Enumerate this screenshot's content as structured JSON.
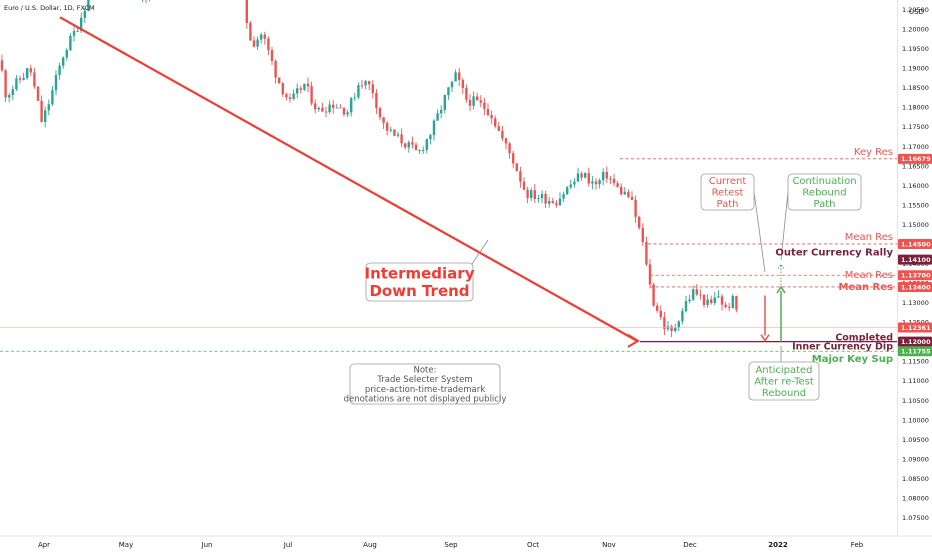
{
  "chart_data": {
    "type": "candlestick",
    "title": "Euro / U.S. Dollar, 1D, FXCM",
    "currency": "USD",
    "ylim": [
      1.0705,
      1.2035
    ],
    "y_ticks": [
      "1.20500",
      "1.20000",
      "1.19500",
      "1.19000",
      "1.18500",
      "1.18000",
      "1.17500",
      "1.17000",
      "1.16500",
      "1.16000",
      "1.15500",
      "1.15000",
      "1.14500",
      "1.14000",
      "1.13500",
      "1.13000",
      "1.12500",
      "1.12000",
      "1.11500",
      "1.11000",
      "1.10500",
      "1.10000",
      "1.09500",
      "1.09000",
      "1.08500",
      "1.08000",
      "1.07500"
    ],
    "x_ticks": [
      "Apr",
      "May",
      "Jun",
      "Jul",
      "Aug",
      "Sep",
      "Oct",
      "Nov",
      "Dec",
      "2022",
      "Feb"
    ],
    "price_labels": [
      {
        "value": 1.16679,
        "text": "1.16679",
        "color": "#ef5350"
      },
      {
        "value": 1.145,
        "text": "1.14500",
        "color": "#ef5350"
      },
      {
        "value": 1.141,
        "text": "1.14100",
        "color": "#7b1f3a"
      },
      {
        "value": 1.137,
        "text": "1.13700",
        "color": "#ef5350"
      },
      {
        "value": 1.134,
        "text": "1.13400",
        "color": "#ef5350"
      },
      {
        "value": 1.12361,
        "text": "1.12361",
        "color": "#ef5350"
      },
      {
        "value": 1.12,
        "text": "1.12000",
        "color": "#7b1f3a"
      },
      {
        "value": 1.11755,
        "text": "1.11755",
        "color": "#4caf50"
      }
    ],
    "levels": [
      {
        "value": 1.16679,
        "label": "Key Res",
        "color": "#ef5350"
      },
      {
        "value": 1.145,
        "label": "Mean Res",
        "color": "#ef5350"
      },
      {
        "value": 1.141,
        "label": "Outer Currency Rally",
        "color": "#7b1f3a"
      },
      {
        "value": 1.137,
        "label": "Mean Res",
        "color": "#ef5350"
      },
      {
        "value": 1.134,
        "label": "Mean Res",
        "color": "#ef5350"
      },
      {
        "value": 1.12,
        "label": "Completed Inner Currency Dip",
        "color": "#7b1f3a"
      },
      {
        "value": 1.11755,
        "label": "Major Key Sup",
        "color": "#4caf50"
      }
    ],
    "annotations": {
      "trend": [
        "Intermediary",
        "Down Trend"
      ],
      "retest": [
        "Current",
        "Retest",
        "Path"
      ],
      "rebound": [
        "Continuation",
        "Rebound",
        "Path"
      ],
      "anticipated": [
        "Anticipated",
        "After re-Test",
        "Rebound"
      ],
      "note": [
        "Note:",
        "Trade Selecter System",
        "price-action-time-trademark",
        "denotations are not displayed publicly"
      ]
    },
    "grid": false,
    "colors": {
      "up": "#26a69a",
      "down": "#ef5350",
      "trend": "#f23b33",
      "dip": "#7b1f3a",
      "support": "#4caf50"
    }
  }
}
